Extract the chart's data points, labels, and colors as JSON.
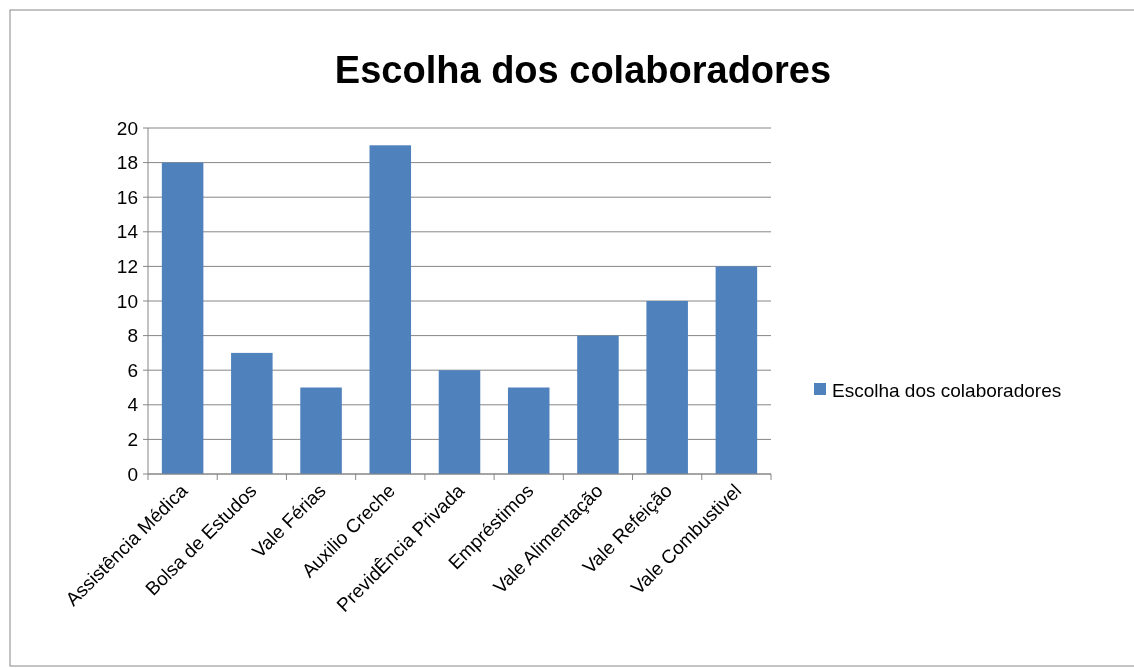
{
  "chart_data": {
    "type": "bar",
    "title": "Escolha dos colaboradores",
    "categories": [
      "Assistência Médica",
      "Bolsa de Estudos",
      "Vale Férias",
      "Auxilio Creche",
      "PrevidÊncia Privada",
      "Empréstimos",
      "Vale Alimentação",
      "Vale Refeição",
      "Vale Combustivel"
    ],
    "series": [
      {
        "name": "Escolha dos colaboradores",
        "color": "#4f81bd",
        "values": [
          18,
          7,
          5,
          19,
          6,
          5,
          8,
          10,
          12
        ]
      }
    ],
    "ylim": [
      0,
      20
    ],
    "yticks": [
      0,
      2,
      4,
      6,
      8,
      10,
      12,
      14,
      16,
      18,
      20
    ],
    "grid": "y",
    "legend": "right"
  }
}
